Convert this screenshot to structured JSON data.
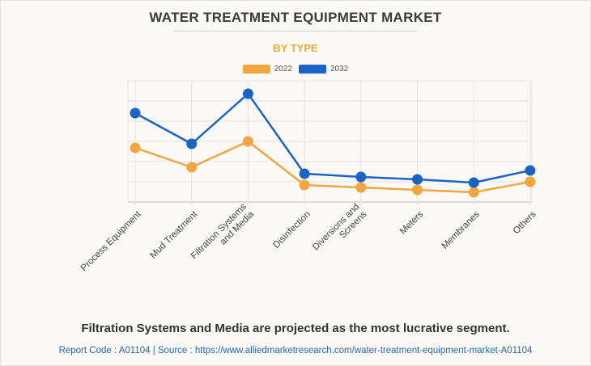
{
  "chart_data": {
    "type": "line",
    "title": "WATER TREATMENT EQUIPMENT MARKET",
    "subtitle": "BY TYPE",
    "categories": [
      "Process Equipment",
      "Mud Treatment",
      "Filtration Systems and Media",
      "Disinfection",
      "Diversions and Screens",
      "Meters",
      "Membranes",
      "Others"
    ],
    "category_lines": [
      [
        "Process Equipment"
      ],
      [
        "Mud Treatment"
      ],
      [
        "Filtration Systems",
        "and Media"
      ],
      [
        "Disinfection"
      ],
      [
        "Diversions and",
        "Screens"
      ],
      [
        "Meters"
      ],
      [
        "Membranes"
      ],
      [
        "Others"
      ]
    ],
    "series": [
      {
        "name": "2022",
        "color": "#f2a540",
        "values": [
          6.7,
          4.3,
          7.5,
          2.1,
          1.8,
          1.5,
          1.2,
          2.5
        ]
      },
      {
        "name": "2032",
        "color": "#1a64c6",
        "values": [
          11.0,
          7.2,
          13.4,
          3.5,
          3.1,
          2.8,
          2.4,
          3.9
        ]
      }
    ],
    "ylim": [
      0,
      15
    ],
    "y_grid_step": 2.5,
    "grid": true,
    "legend_position": "top-center",
    "xlabel": "",
    "ylabel": ""
  },
  "footnote": "Filtration Systems and Media are projected as the most lucrative segment.",
  "source": "Report Code : A01104  |  Source : https://www.alliedmarketresearch.com/water-treatment-equipment-market-A01104"
}
